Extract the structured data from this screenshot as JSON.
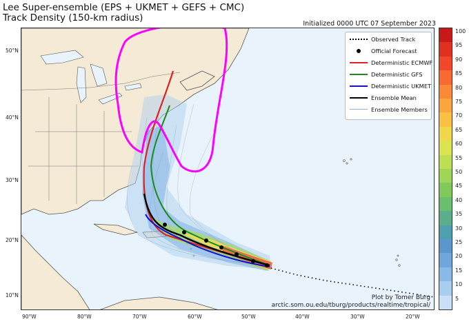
{
  "title": {
    "line1": "Lee Super-ensemble (EPS + UKMET + GEFS + CMC)",
    "line2": "Track Density (150-km radius)"
  },
  "initialized": "Initialized 0000 UTC 07 September 2023",
  "axes": {
    "lat_ticks": [
      "50°N",
      "40°N",
      "30°N",
      "20°N",
      "10°N"
    ],
    "lon_ticks": [
      "90°W",
      "80°W",
      "70°W",
      "60°W",
      "50°W",
      "40°W",
      "30°W",
      "20°W"
    ]
  },
  "legend": {
    "items": [
      {
        "label": "Observed Track",
        "style": "dotted",
        "color": "#000000"
      },
      {
        "label": "Official Forecast",
        "style": "dot",
        "color": "#000000"
      },
      {
        "label": "Deterministic ECMWF",
        "style": "line",
        "color": "#e02020"
      },
      {
        "label": "Deterministic GFS",
        "style": "line",
        "color": "#1a8a1a"
      },
      {
        "label": "Deterministic UKMET",
        "style": "line",
        "color": "#1010d0"
      },
      {
        "label": "Ensemble Mean",
        "style": "line",
        "color": "#000000"
      },
      {
        "label": "Ensemble Members",
        "style": "thin",
        "color": "#9aaec8"
      }
    ]
  },
  "colorbar": {
    "ticks": [
      "100",
      "95",
      "90",
      "85",
      "80",
      "75",
      "70",
      "65",
      "60",
      "55",
      "50",
      "45",
      "40",
      "35",
      "30",
      "25",
      "20",
      "15",
      "10",
      "5"
    ],
    "colors": [
      "#c81818",
      "#e03020",
      "#f04828",
      "#f86a30",
      "#fa8a36",
      "#fba63c",
      "#f9c142",
      "#f0d84a",
      "#dbe34f",
      "#bedf52",
      "#9fd656",
      "#82c95c",
      "#6bbd70",
      "#5aae8c",
      "#4f9fae",
      "#5b97cc",
      "#70a6dc",
      "#8bb9e6",
      "#a9cdef",
      "#cbe0f6"
    ]
  },
  "credit": {
    "line1": "Plot by Tomer Burg",
    "line2": "arctic.som.ou.edu/tburg/products/realtime/tropical/"
  }
}
